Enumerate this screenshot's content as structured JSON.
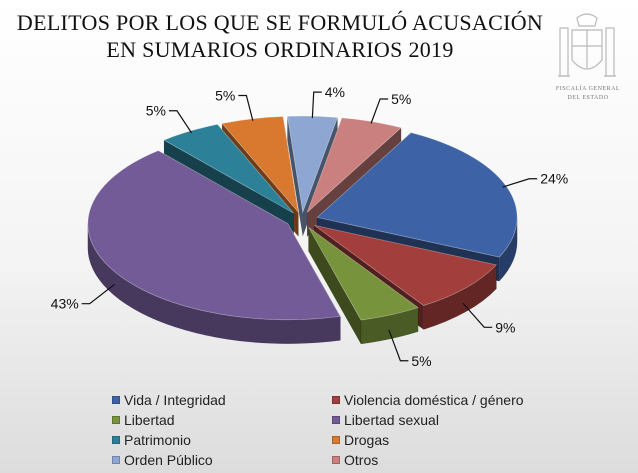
{
  "title": {
    "line1": "DELITOS POR LOS QUE SE FORMULÓ ACUSACIÓN",
    "line2": "EN SUMARIOS ORDINARIOS 2019"
  },
  "logo": {
    "line1": "FISCALÍA GENERAL",
    "line2": "DEL ESTADO",
    "icon": "coat-of-arms-icon"
  },
  "chart_data": {
    "type": "pie",
    "title": "DELITOS POR LOS QUE SE FORMULÓ ACUSACIÓN EN SUMARIOS ORDINARIOS 2019",
    "unit": "%",
    "slices": [
      {
        "name": "Vida / Integridad",
        "value": 24,
        "label": "24%",
        "color": "#3d63a6"
      },
      {
        "name": "Violencia doméstica / género",
        "value": 9,
        "label": "9%",
        "color": "#a23e3c"
      },
      {
        "name": "Libertad",
        "value": 5,
        "label": "5%",
        "color": "#77933c"
      },
      {
        "name": "Libertad sexual",
        "value": 43,
        "label": "43%",
        "color": "#735b97"
      },
      {
        "name": "Patrimonio",
        "value": 5,
        "label": "5%",
        "color": "#2c8198"
      },
      {
        "name": "Drogas",
        "value": 5,
        "label": "5%",
        "color": "#d9782f"
      },
      {
        "name": "Orden Público",
        "value": 4,
        "label": "4%",
        "color": "#8ea6d2"
      },
      {
        "name": "Otros",
        "value": 5,
        "label": "5%",
        "color": "#c9807e"
      }
    ],
    "legend_position": "bottom",
    "legend_columns": 2,
    "exploded": true,
    "three_d": true
  }
}
